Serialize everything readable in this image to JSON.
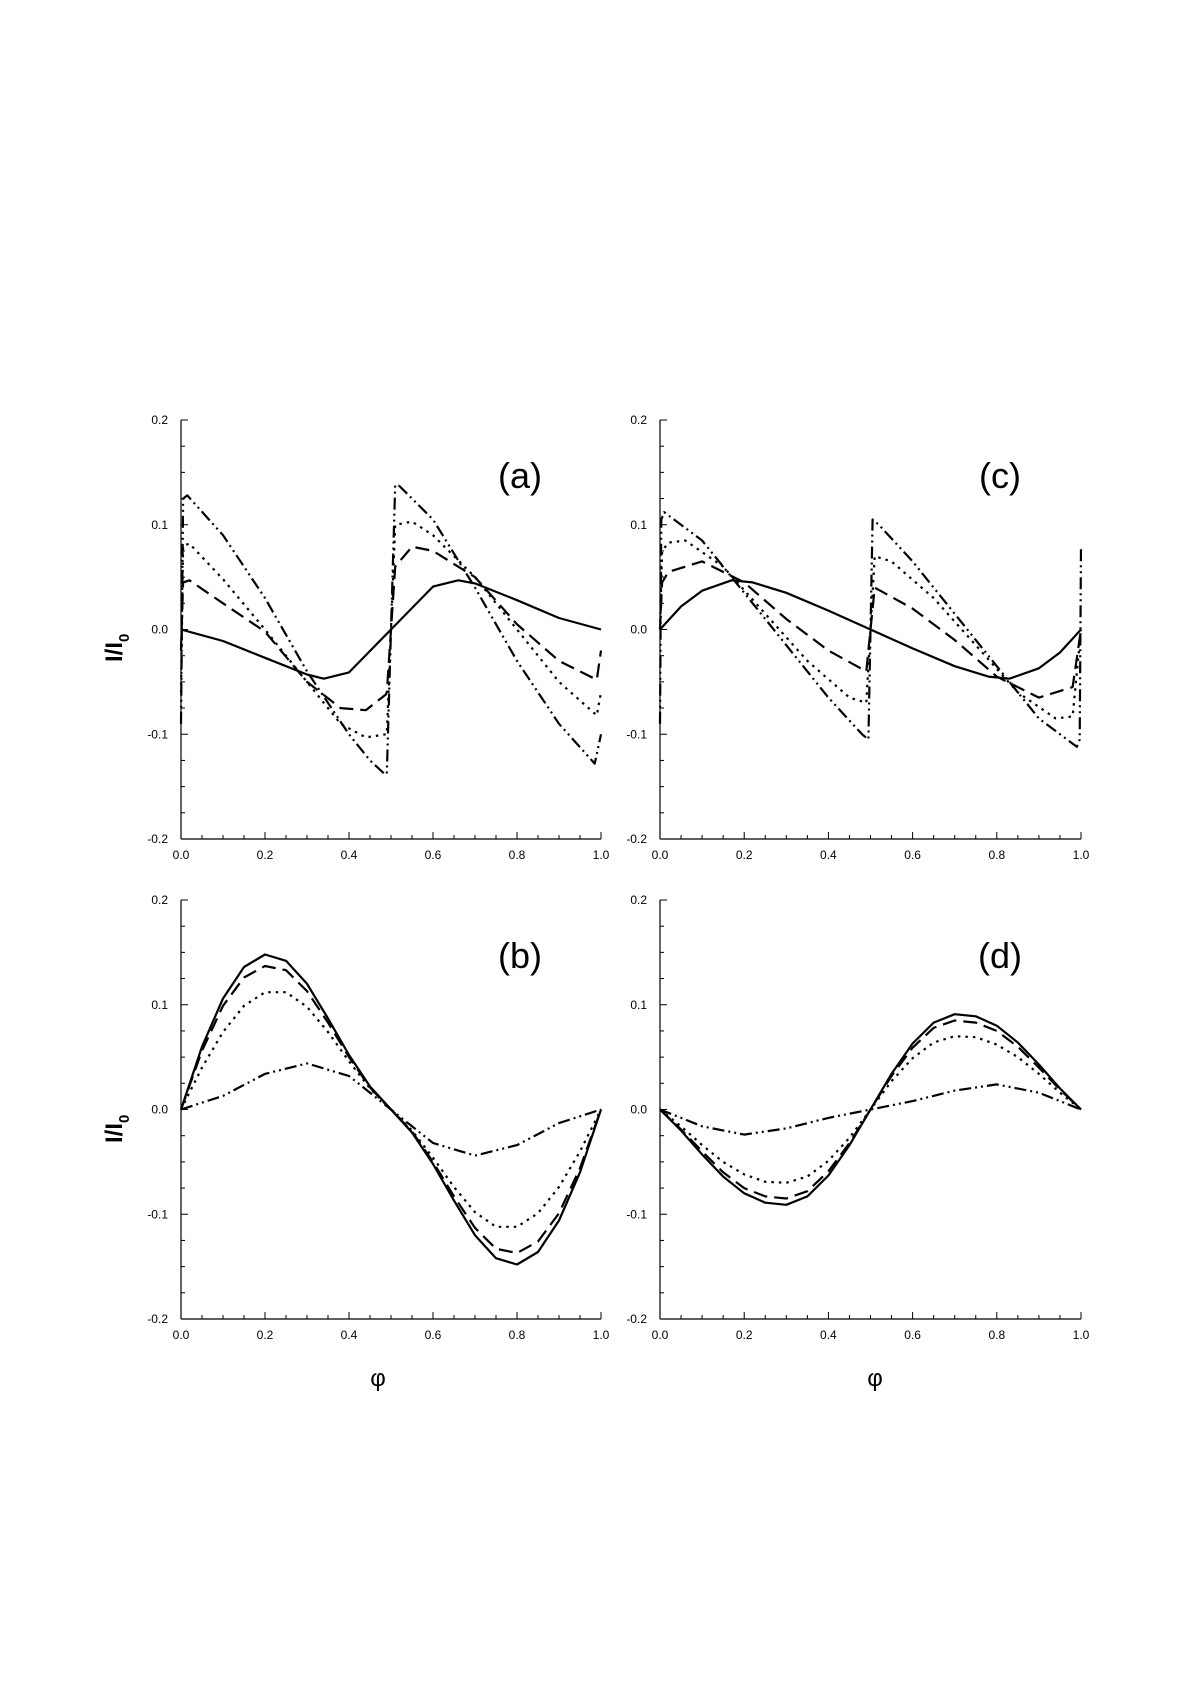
{
  "figure": {
    "ylabel_main": "I/I",
    "ylabel_sub": "0",
    "xlabel": "φ"
  },
  "chart_data": [
    {
      "panel": "(a)",
      "type": "line",
      "xlim": [
        0,
        1
      ],
      "ylim": [
        -0.2,
        0.2
      ],
      "x_ticks": [
        "0.0",
        "0.2",
        "0.4",
        "0.6",
        "0.8",
        "1.0"
      ],
      "y_ticks": [
        "-0.2",
        "-0.1",
        "0.0",
        "0.1",
        "0.2"
      ],
      "ylabel": "I/I0",
      "xlabel": "",
      "series": [
        {
          "style": "solid",
          "x": [
            0,
            0.1,
            0.2,
            0.3,
            0.34,
            0.4,
            0.5,
            0.6,
            0.66,
            0.7,
            0.8,
            0.9,
            1.0
          ],
          "y": [
            0,
            -0.011,
            -0.027,
            -0.043,
            -0.047,
            -0.041,
            0,
            0.041,
            0.047,
            0.044,
            0.028,
            0.011,
            0
          ]
        },
        {
          "style": "dashed",
          "x": [
            0,
            0.005,
            0.02,
            0.1,
            0.2,
            0.3,
            0.38,
            0.44,
            0.488,
            0.49,
            0.5,
            0.51,
            0.55,
            0.6,
            0.7,
            0.8,
            0.9,
            0.99,
            1.0
          ],
          "y": [
            -0.02,
            0.045,
            0.047,
            0.025,
            -0.002,
            -0.05,
            -0.075,
            -0.077,
            -0.062,
            -0.06,
            0,
            0.06,
            0.079,
            0.075,
            0.05,
            0.005,
            -0.03,
            -0.048,
            -0.02
          ]
        },
        {
          "style": "dotted",
          "x": [
            0,
            0.005,
            0.02,
            0.1,
            0.2,
            0.3,
            0.38,
            0.44,
            0.488,
            0.49,
            0.5,
            0.51,
            0.55,
            0.6,
            0.7,
            0.8,
            0.9,
            0.99,
            1.0
          ],
          "y": [
            -0.06,
            0.08,
            0.082,
            0.048,
            0.0,
            -0.05,
            -0.09,
            -0.103,
            -0.1,
            -0.1,
            0,
            0.1,
            0.103,
            0.09,
            0.05,
            0.0,
            -0.05,
            -0.082,
            -0.06
          ]
        },
        {
          "style": "dashdot",
          "x": [
            0,
            0.005,
            0.015,
            0.1,
            0.2,
            0.3,
            0.4,
            0.45,
            0.485,
            0.49,
            0.5,
            0.51,
            0.52,
            0.6,
            0.7,
            0.8,
            0.9,
            0.985,
            1.0
          ],
          "y": [
            -0.09,
            0.125,
            0.128,
            0.09,
            0.03,
            -0.04,
            -0.1,
            -0.125,
            -0.138,
            -0.138,
            0,
            0.138,
            0.137,
            0.105,
            0.04,
            -0.03,
            -0.09,
            -0.128,
            -0.1
          ]
        }
      ]
    },
    {
      "panel": "(b)",
      "type": "line",
      "xlim": [
        0,
        1
      ],
      "ylim": [
        -0.2,
        0.2
      ],
      "x_ticks": [
        "0.0",
        "0.2",
        "0.4",
        "0.6",
        "0.8",
        "1.0"
      ],
      "y_ticks": [
        "-0.2",
        "-0.1",
        "0.0",
        "0.1",
        "0.2"
      ],
      "ylabel": "I/I0",
      "xlabel": "φ",
      "series": [
        {
          "style": "solid",
          "x": [
            0,
            0.05,
            0.1,
            0.15,
            0.2,
            0.25,
            0.3,
            0.35,
            0.4,
            0.45,
            0.5,
            0.55,
            0.6,
            0.65,
            0.7,
            0.75,
            0.8,
            0.85,
            0.9,
            0.95,
            1.0
          ],
          "y": [
            0,
            0.06,
            0.106,
            0.136,
            0.148,
            0.142,
            0.12,
            0.087,
            0.052,
            0.022,
            0,
            -0.022,
            -0.052,
            -0.087,
            -0.12,
            -0.142,
            -0.148,
            -0.136,
            -0.106,
            -0.06,
            0
          ]
        },
        {
          "style": "dashed",
          "x": [
            0,
            0.05,
            0.1,
            0.15,
            0.2,
            0.25,
            0.3,
            0.35,
            0.4,
            0.45,
            0.5,
            0.55,
            0.6,
            0.65,
            0.7,
            0.75,
            0.8,
            0.85,
            0.9,
            0.95,
            1.0
          ],
          "y": [
            0,
            0.056,
            0.099,
            0.126,
            0.137,
            0.133,
            0.113,
            0.083,
            0.05,
            0.021,
            0,
            -0.021,
            -0.05,
            -0.083,
            -0.113,
            -0.133,
            -0.137,
            -0.126,
            -0.099,
            -0.056,
            0
          ]
        },
        {
          "style": "dotted",
          "x": [
            0,
            0.05,
            0.1,
            0.15,
            0.2,
            0.25,
            0.3,
            0.35,
            0.4,
            0.45,
            0.5,
            0.55,
            0.6,
            0.65,
            0.7,
            0.75,
            0.8,
            0.85,
            0.9,
            0.95,
            1.0
          ],
          "y": [
            0,
            0.04,
            0.074,
            0.099,
            0.112,
            0.112,
            0.098,
            0.074,
            0.046,
            0.02,
            0,
            -0.02,
            -0.046,
            -0.074,
            -0.098,
            -0.112,
            -0.112,
            -0.099,
            -0.074,
            -0.04,
            0
          ]
        },
        {
          "style": "dashdot",
          "x": [
            0,
            0.1,
            0.2,
            0.3,
            0.4,
            0.5,
            0.6,
            0.7,
            0.8,
            0.9,
            1.0
          ],
          "y": [
            0,
            0.013,
            0.034,
            0.044,
            0.032,
            0,
            -0.032,
            -0.044,
            -0.034,
            -0.013,
            0
          ]
        }
      ]
    },
    {
      "panel": "(c)",
      "type": "line",
      "xlim": [
        0,
        1
      ],
      "ylim": [
        -0.2,
        0.2
      ],
      "x_ticks": [
        "0.0",
        "0.2",
        "0.4",
        "0.6",
        "0.8",
        "1.0"
      ],
      "y_ticks": [
        "-0.2",
        "-0.1",
        "0.0",
        "0.1",
        "0.2"
      ],
      "ylabel": "",
      "xlabel": "",
      "series": [
        {
          "style": "solid",
          "x": [
            0,
            0.05,
            0.1,
            0.17,
            0.22,
            0.3,
            0.4,
            0.5,
            0.6,
            0.7,
            0.78,
            0.83,
            0.9,
            0.95,
            1.0
          ],
          "y": [
            0,
            0.022,
            0.037,
            0.047,
            0.045,
            0.035,
            0.018,
            0,
            -0.018,
            -0.035,
            -0.045,
            -0.047,
            -0.037,
            -0.022,
            0
          ]
        },
        {
          "style": "dashed",
          "x": [
            0,
            0.005,
            0.02,
            0.1,
            0.2,
            0.3,
            0.4,
            0.49,
            0.5,
            0.51,
            0.6,
            0.7,
            0.8,
            0.9,
            0.98,
            1.0
          ],
          "y": [
            0,
            0.045,
            0.055,
            0.065,
            0.045,
            0.01,
            -0.02,
            -0.04,
            0,
            0.04,
            0.02,
            -0.01,
            -0.045,
            -0.065,
            -0.055,
            0
          ]
        },
        {
          "style": "dotted",
          "x": [
            0,
            0.005,
            0.02,
            0.06,
            0.15,
            0.25,
            0.35,
            0.45,
            0.49,
            0.5,
            0.51,
            0.55,
            0.65,
            0.75,
            0.85,
            0.94,
            0.98,
            1.0
          ],
          "y": [
            0,
            0.075,
            0.083,
            0.085,
            0.06,
            0.015,
            -0.03,
            -0.065,
            -0.07,
            0,
            0.07,
            0.065,
            0.03,
            -0.015,
            -0.06,
            -0.085,
            -0.083,
            0
          ]
        },
        {
          "style": "dashdot",
          "x": [
            0,
            0.003,
            0.01,
            0.1,
            0.2,
            0.3,
            0.4,
            0.48,
            0.495,
            0.5,
            0.505,
            0.52,
            0.6,
            0.7,
            0.8,
            0.9,
            0.99,
            0.997,
            1.0
          ],
          "y": [
            -0.09,
            0.105,
            0.112,
            0.085,
            0.035,
            -0.015,
            -0.065,
            -0.1,
            -0.105,
            0,
            0.105,
            0.1,
            0.065,
            0.015,
            -0.035,
            -0.085,
            -0.112,
            -0.105,
            0.08
          ]
        }
      ]
    },
    {
      "panel": "(d)",
      "type": "line",
      "xlim": [
        0,
        1
      ],
      "ylim": [
        -0.2,
        0.2
      ],
      "x_ticks": [
        "0.0",
        "0.2",
        "0.4",
        "0.6",
        "0.8",
        "1.0"
      ],
      "y_ticks": [
        "-0.2",
        "-0.1",
        "0.0",
        "0.1",
        "0.2"
      ],
      "ylabel": "",
      "xlabel": "φ",
      "series": [
        {
          "style": "solid",
          "x": [
            0,
            0.05,
            0.1,
            0.15,
            0.2,
            0.25,
            0.3,
            0.35,
            0.4,
            0.45,
            0.5,
            0.55,
            0.6,
            0.65,
            0.7,
            0.75,
            0.8,
            0.85,
            0.9,
            0.95,
            1.0
          ],
          "y": [
            0,
            -0.02,
            -0.043,
            -0.064,
            -0.08,
            -0.089,
            -0.091,
            -0.083,
            -0.063,
            -0.034,
            0,
            0.034,
            0.063,
            0.083,
            0.091,
            0.089,
            0.08,
            0.064,
            0.043,
            0.02,
            0
          ]
        },
        {
          "style": "dashed",
          "x": [
            0,
            0.05,
            0.1,
            0.15,
            0.2,
            0.25,
            0.3,
            0.35,
            0.4,
            0.45,
            0.5,
            0.55,
            0.6,
            0.65,
            0.7,
            0.75,
            0.8,
            0.85,
            0.9,
            0.95,
            1.0
          ],
          "y": [
            0,
            -0.019,
            -0.04,
            -0.06,
            -0.075,
            -0.083,
            -0.085,
            -0.078,
            -0.059,
            -0.032,
            0,
            0.032,
            0.059,
            0.078,
            0.085,
            0.083,
            0.075,
            0.06,
            0.04,
            0.019,
            0
          ]
        },
        {
          "style": "dotted",
          "x": [
            0,
            0.05,
            0.1,
            0.15,
            0.2,
            0.25,
            0.3,
            0.35,
            0.4,
            0.45,
            0.5,
            0.55,
            0.6,
            0.65,
            0.7,
            0.75,
            0.8,
            0.85,
            0.9,
            0.95,
            1.0
          ],
          "y": [
            0,
            -0.016,
            -0.034,
            -0.05,
            -0.062,
            -0.069,
            -0.07,
            -0.064,
            -0.049,
            -0.027,
            0,
            0.027,
            0.049,
            0.064,
            0.07,
            0.069,
            0.062,
            0.05,
            0.034,
            0.016,
            0
          ]
        },
        {
          "style": "dashdot",
          "x": [
            0,
            0.1,
            0.2,
            0.3,
            0.4,
            0.5,
            0.6,
            0.7,
            0.8,
            0.9,
            1.0
          ],
          "y": [
            0,
            -0.016,
            -0.024,
            -0.018,
            -0.008,
            0,
            0.008,
            0.018,
            0.024,
            0.016,
            0
          ]
        }
      ]
    }
  ]
}
